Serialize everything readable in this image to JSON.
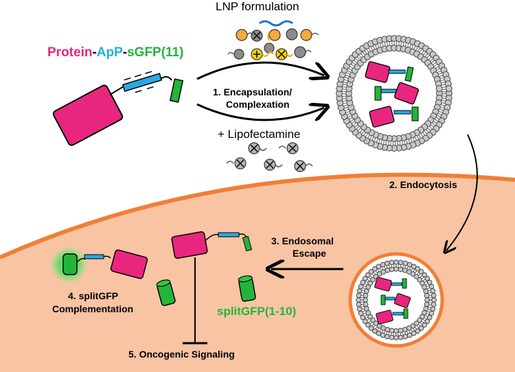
{
  "title": {
    "protein": "Protein",
    "sep1": "-",
    "apP": "ApP",
    "sep2": "-",
    "sgfp": "sGFP(11)"
  },
  "labels": {
    "lnp_formulation": "LNP formulation",
    "step1_line1": "1. Encapsulation/",
    "step1_line2": "Complexation",
    "lipofectamine": "+ Lipofectamine",
    "step2": "2. Endocytosis",
    "step3_line1": "3. Endosomal",
    "step3_line2": "Escape",
    "step4_line1": "4. splitGFP",
    "step4_line2": "Complementation",
    "splitgfp_1_10": "splitGFP(1-10)",
    "step5": "5. Oncogenic Signaling"
  },
  "colors": {
    "protein": "#e8267e",
    "apP": "#29a9e0",
    "sgfp": "#22b53a",
    "cell": "#f8c4a4",
    "cell_border": "#f07f36",
    "lipid": "#c9c9c9",
    "lnp_orange": "#f5a93c",
    "lnp_yellow": "#f5d000",
    "lnp_gray": "#8c8c8c",
    "rna_blue": "#1f73c8",
    "text": "#000000"
  },
  "icons": {
    "positive": "plus-charge-icon",
    "negative": "minus-charge-icon"
  }
}
